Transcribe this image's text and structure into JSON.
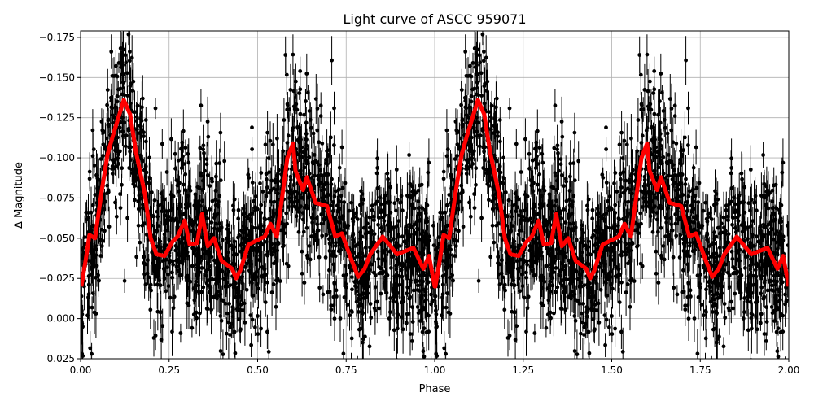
{
  "chart_data": {
    "type": "scatter",
    "title": "Light curve of ASCC 959071",
    "xlabel": "Phase",
    "ylabel": "Δ Magnitude",
    "xlim": [
      0.0,
      2.0
    ],
    "ylim": [
      0.025,
      -0.179
    ],
    "y_inverted": true,
    "grid": true,
    "xticks": [
      "0.00",
      "0.25",
      "0.50",
      "0.75",
      "1.00",
      "1.25",
      "1.50",
      "1.75",
      "2.00"
    ],
    "xtick_values": [
      0,
      0.25,
      0.5,
      0.75,
      1.0,
      1.25,
      1.5,
      1.75,
      2.0
    ],
    "yticks": [
      "−0.175",
      "−0.150",
      "−0.125",
      "−0.100",
      "−0.075",
      "−0.050",
      "−0.025",
      "0.000",
      "0.025"
    ],
    "ytick_values": [
      -0.175,
      -0.15,
      -0.125,
      -0.1,
      -0.075,
      -0.05,
      -0.025,
      0.0,
      0.025
    ],
    "scatter": {
      "color": "#000000",
      "marker": "circle with vertical error bars",
      "scatter_sd": 0.028,
      "points_per_unit_phase": 1800
    },
    "model_curve": {
      "color": "#ff0000",
      "repeats_every_phase": 1.0,
      "phase": [
        0.002,
        0.014,
        0.025,
        0.041,
        0.06,
        0.076,
        0.09,
        0.122,
        0.14,
        0.156,
        0.182,
        0.198,
        0.214,
        0.237,
        0.26,
        0.274,
        0.294,
        0.308,
        0.329,
        0.343,
        0.359,
        0.377,
        0.398,
        0.428,
        0.439,
        0.451,
        0.474,
        0.492,
        0.52,
        0.536,
        0.554,
        0.572,
        0.584,
        0.6,
        0.607,
        0.628,
        0.639,
        0.664,
        0.696,
        0.719,
        0.738,
        0.766,
        0.784,
        0.802,
        0.818,
        0.853,
        0.894,
        0.94,
        0.968,
        0.984,
        1.0
      ],
      "magnitude": [
        -0.02,
        -0.036,
        -0.052,
        -0.05,
        -0.08,
        -0.102,
        -0.113,
        -0.136,
        -0.127,
        -0.104,
        -0.077,
        -0.05,
        -0.04,
        -0.039,
        -0.048,
        -0.051,
        -0.061,
        -0.046,
        -0.047,
        -0.065,
        -0.045,
        -0.05,
        -0.036,
        -0.031,
        -0.025,
        -0.03,
        -0.046,
        -0.048,
        -0.051,
        -0.059,
        -0.051,
        -0.08,
        -0.1,
        -0.109,
        -0.092,
        -0.08,
        -0.088,
        -0.072,
        -0.07,
        -0.051,
        -0.053,
        -0.036,
        -0.026,
        -0.031,
        -0.04,
        -0.051,
        -0.04,
        -0.044,
        -0.031,
        -0.039,
        -0.02
      ]
    }
  }
}
